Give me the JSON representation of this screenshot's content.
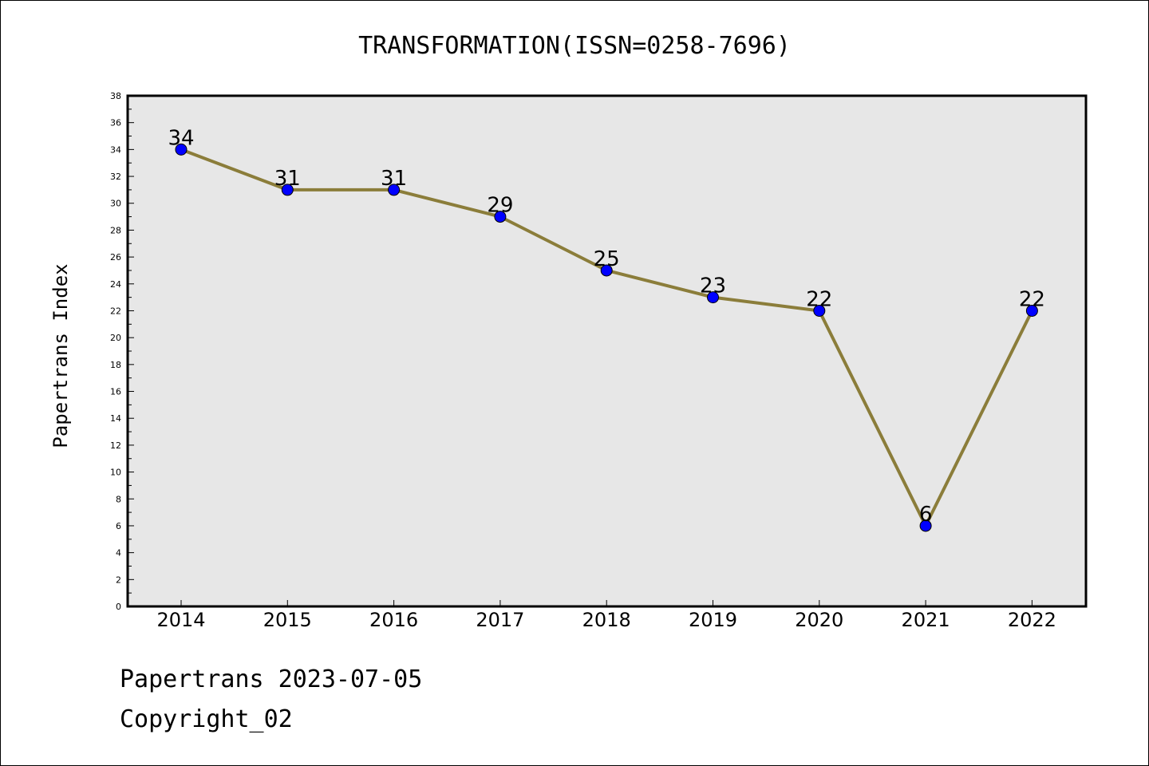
{
  "chart_data": {
    "type": "line",
    "title": "TRANSFORMATION(ISSN=0258-7696)",
    "xlabel": "",
    "ylabel": "Papertrans Index",
    "x": [
      "2014",
      "2015",
      "2016",
      "2017",
      "2018",
      "2019",
      "2020",
      "2021",
      "2022"
    ],
    "series": [
      {
        "values": [
          34,
          31,
          31,
          29,
          25,
          23,
          22,
          6,
          22
        ]
      }
    ],
    "data_labels": [
      "34",
      "31",
      "31",
      "29",
      "25",
      "23",
      "22",
      "6",
      "22"
    ],
    "ylim": [
      0,
      38
    ],
    "yticks": [
      "0",
      "2",
      "4",
      "6",
      "8",
      "10",
      "12",
      "14",
      "16",
      "18",
      "20",
      "22",
      "24",
      "26",
      "28",
      "30",
      "32",
      "34",
      "36",
      "38"
    ],
    "grid": false,
    "legend": "none",
    "colors": {
      "line": "#8B7D3A",
      "marker": "#0000FF",
      "plot_background": "#E7E7E7"
    }
  },
  "footer": {
    "line1": "Papertrans 2023-07-05",
    "line2": "Copyright_02"
  }
}
